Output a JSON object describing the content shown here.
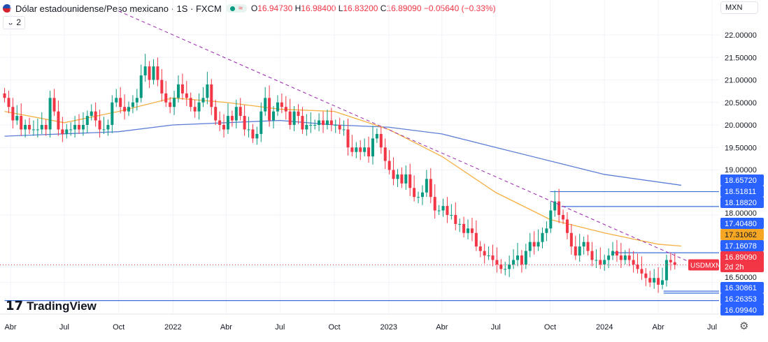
{
  "header": {
    "title": "Dólar estadounidense/Peso mexicano · 1S · FXCM",
    "open": "16.94730",
    "high": "16.98400",
    "low": "16.83200",
    "close": "16.89090",
    "change": "−0.05640 (−0.33%)",
    "o_label": "O",
    "h_label": "H",
    "l_label": "L",
    "c_label": "C",
    "collapse": "2"
  },
  "currency_select": "MXN",
  "logo": "TradingView",
  "chart_data": {
    "type": "candlestick",
    "symbol": "USDMXN",
    "interval": "weekly",
    "start_week": "2021-03-22",
    "colors": {
      "up": "#089981",
      "down": "#f23645",
      "ma_fast": "#f5b041",
      "ma_slow": "#5b7fd6",
      "hline": "#3c6fdc",
      "trend": "#9c27b0"
    },
    "closes": [
      20.6,
      20.4,
      20.1,
      20.2,
      19.9,
      20.0,
      19.9,
      19.9,
      19.9,
      20.0,
      19.9,
      20.6,
      20.3,
      19.9,
      19.8,
      19.9,
      19.9,
      20.0,
      19.9,
      20.0,
      20.2,
      20.3,
      20.1,
      19.9,
      19.9,
      20.0,
      20.5,
      20.6,
      20.4,
      20.3,
      20.4,
      20.5,
      20.6,
      21.1,
      21.3,
      21.0,
      21.3,
      21.0,
      20.7,
      20.5,
      20.4,
      20.6,
      20.9,
      20.7,
      20.6,
      20.4,
      20.3,
      20.5,
      20.6,
      20.9,
      20.4,
      20.1,
      20.0,
      19.9,
      20.2,
      20.1,
      20.4,
      20.2,
      19.9,
      19.9,
      19.7,
      19.8,
      20.3,
      20.6,
      20.1,
      20.3,
      20.5,
      20.4,
      20.3,
      20.0,
      20.3,
      20.2,
      19.9,
      20.0,
      20.0,
      20.0,
      20.1,
      20.0,
      20.1,
      20.0,
      20.0,
      19.9,
      19.9,
      19.5,
      19.4,
      19.5,
      19.4,
      19.5,
      19.3,
      19.7,
      19.8,
      19.5,
      19.2,
      19.0,
      18.8,
      18.9,
      18.7,
      18.9,
      18.6,
      18.4,
      18.4,
      18.5,
      18.8,
      18.4,
      18.1,
      18.1,
      18.2,
      18.0,
      18.0,
      17.8,
      17.8,
      17.6,
      17.7,
      17.6,
      17.3,
      17.2,
      17.1,
      17.1,
      17.0,
      16.9,
      16.8,
      16.8,
      16.9,
      17.0,
      17.1,
      16.9,
      17.2,
      17.4,
      17.3,
      17.4,
      17.6,
      17.7,
      18.1,
      18.3,
      18.0,
      17.9,
      17.6,
      17.3,
      17.1,
      17.3,
      17.4,
      17.2,
      17.0,
      17.0,
      16.9,
      17.0,
      17.1,
      17.2,
      17.1,
      17.0,
      17.1,
      17.0,
      16.9,
      16.8,
      16.7,
      16.6,
      16.5,
      16.6,
      16.45,
      16.55,
      17.0,
      16.95,
      16.89
    ],
    "ma_fast": [
      [
        "2021-03-22",
        20.3
      ],
      [
        "2021-07-01",
        20.05
      ],
      [
        "2021-10-01",
        20.3
      ],
      [
        "2022-01-01",
        20.6
      ],
      [
        "2022-04-01",
        20.5
      ],
      [
        "2022-07-01",
        20.35
      ],
      [
        "2022-10-01",
        20.3
      ],
      [
        "2023-01-01",
        19.9
      ],
      [
        "2023-04-01",
        19.3
      ],
      [
        "2023-07-01",
        18.5
      ],
      [
        "2023-10-01",
        17.9
      ],
      [
        "2024-01-01",
        17.6
      ],
      [
        "2024-04-01",
        17.35
      ],
      [
        "2024-05-10",
        17.31
      ]
    ],
    "ma_slow": [
      [
        "2021-03-22",
        19.75
      ],
      [
        "2021-10-01",
        19.85
      ],
      [
        "2022-01-01",
        20.0
      ],
      [
        "2022-07-01",
        20.1
      ],
      [
        "2022-10-01",
        20.0
      ],
      [
        "2023-01-01",
        19.95
      ],
      [
        "2023-04-01",
        19.8
      ],
      [
        "2023-07-01",
        19.5
      ],
      [
        "2023-10-01",
        19.2
      ],
      [
        "2024-01-01",
        18.9
      ],
      [
        "2024-05-10",
        18.66
      ]
    ],
    "trendline": [
      [
        "2021-10-01",
        22.53
      ],
      [
        "2024-05-20",
        16.98
      ]
    ],
    "hlines": [
      {
        "price": 18.51811,
        "from": "2023-10-01"
      },
      {
        "price": 18.1882,
        "from": "2023-10-20"
      },
      {
        "price": 17.16078,
        "from": "2024-01-15"
      },
      {
        "price": 16.30861,
        "from": "2024-04-10"
      },
      {
        "price": 16.26353,
        "from": "2024-04-10"
      },
      {
        "price": 16.0994,
        "from": "2021-03-22"
      }
    ],
    "y_ticks": [
      "22.00000",
      "21.50000",
      "21.00000",
      "20.50000",
      "20.00000",
      "19.50000",
      "19.00000",
      "18.00000",
      "16.50000"
    ],
    "price_labels": [
      {
        "text": "18.65720",
        "price": 18.6572,
        "color": "#2962ff"
      },
      {
        "text": "18.51811",
        "price": 18.51811,
        "color": "#2962ff"
      },
      {
        "text": "18.18820",
        "price": 18.1882,
        "color": "#2962ff"
      },
      {
        "text": "17.40480",
        "price": 17.4048,
        "color": "#2962ff"
      },
      {
        "text": "17.31062",
        "price": 17.31062,
        "color": "#f5a623"
      },
      {
        "text": "17.16078",
        "price": 17.16078,
        "color": "#2962ff"
      },
      {
        "text": "16.30861",
        "price": 16.30861,
        "color": "#2962ff"
      },
      {
        "text": "16.26353",
        "price": 16.26353,
        "color": "#2962ff"
      },
      {
        "text": "16.09940",
        "price": 16.0994,
        "color": "#2962ff"
      }
    ],
    "last_price": {
      "text": "16.89090",
      "countdown": "2d 2h",
      "symbol_tag": "USDMXN",
      "price": 16.8909
    },
    "x_ticks": [
      [
        "Abr",
        "2021-04-01"
      ],
      [
        "Jul",
        "2021-07-01"
      ],
      [
        "Oct",
        "2021-10-01"
      ],
      [
        "2022",
        "2022-01-01"
      ],
      [
        "Abr",
        "2022-04-01"
      ],
      [
        "Jul",
        "2022-07-01"
      ],
      [
        "Oct",
        "2022-10-01"
      ],
      [
        "2023",
        "2023-01-01"
      ],
      [
        "Abr",
        "2023-04-01"
      ],
      [
        "Jul",
        "2023-07-01"
      ],
      [
        "Oct",
        "2023-10-01"
      ],
      [
        "2024",
        "2024-01-01"
      ],
      [
        "Abr",
        "2024-04-01"
      ],
      [
        "Jul",
        "2024-07-01"
      ]
    ]
  }
}
